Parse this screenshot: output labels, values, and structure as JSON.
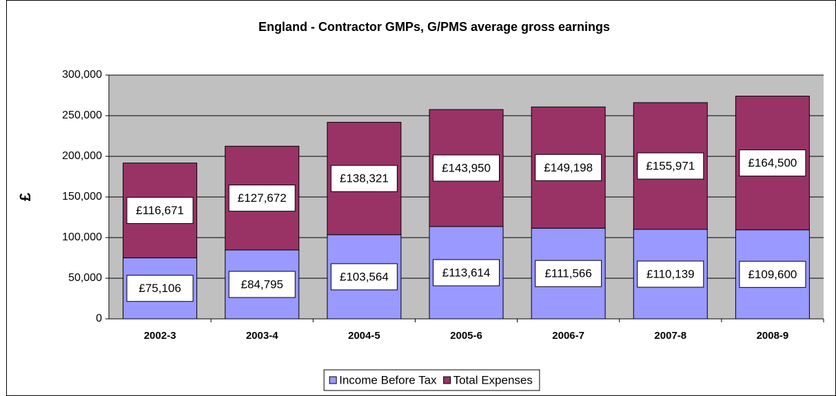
{
  "chart_data": {
    "type": "stacked_bar",
    "title": "England - Contractor GMPs, G/PMS average gross earnings",
    "y_label": "£",
    "categories": [
      "2002-3",
      "2003-4",
      "2004-5",
      "2005-6",
      "2006-7",
      "2007-8",
      "2008-9"
    ],
    "series": [
      {
        "name": "Income Before Tax",
        "color": "#9999ff",
        "values": [
          75106,
          84795,
          103564,
          113614,
          111566,
          110139,
          109600
        ],
        "value_labels": [
          "£75,106",
          "£84,795",
          "£103,564",
          "£113,614",
          "£111,566",
          "£110,139",
          "£109,600"
        ]
      },
      {
        "name": "Total Expenses",
        "color": "#993366",
        "values": [
          116671,
          127672,
          138321,
          143950,
          149198,
          155971,
          164500
        ],
        "value_labels": [
          "£116,671",
          "£127,672",
          "£138,321",
          "£143,950",
          "£149,198",
          "£155,971",
          "£164,500"
        ]
      }
    ],
    "ylim": [
      0,
      300000
    ],
    "yticks": [
      0,
      {
        "value": 50000,
        "label": "50,000"
      },
      {
        "value": 100000,
        "label": "100,000"
      },
      {
        "value": 150000,
        "label": "150,000"
      },
      {
        "value": 200000,
        "label": "200,000"
      },
      {
        "value": 250000,
        "label": "250,000"
      },
      {
        "value": 300000,
        "label": "300,000"
      }
    ],
    "grid": true,
    "plot_background": "#c0c0c0",
    "legend": "bottom"
  }
}
